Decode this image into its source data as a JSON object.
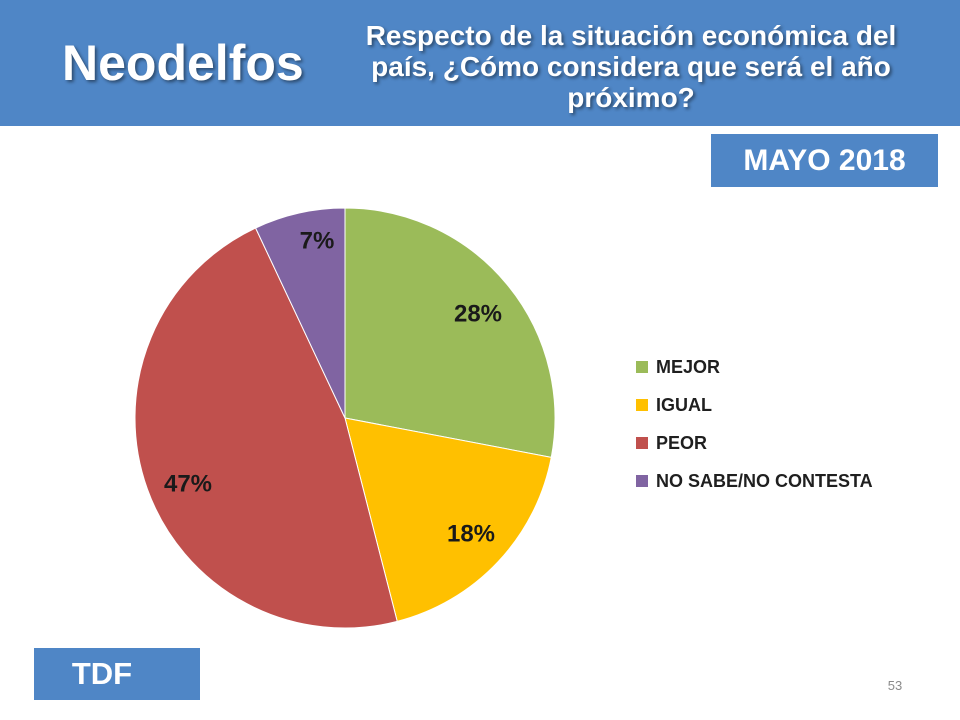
{
  "header": {
    "brand": "Neodelfos",
    "question": "Respecto de la situación económica del país, ¿Cómo considera que será el año próximo?"
  },
  "date_badge": "MAYO 2018",
  "footer": {
    "source_badge": "TDF",
    "slide_number": "53"
  },
  "colors": {
    "header_bg": "#4f86c6"
  },
  "chart_data": {
    "type": "pie",
    "title": "",
    "legend_position": "right",
    "slices": [
      {
        "label": "MEJOR",
        "value": 28,
        "display": "28%",
        "color": "#9bbb59"
      },
      {
        "label": "IGUAL",
        "value": 18,
        "display": "18%",
        "color": "#ffc000"
      },
      {
        "label": "PEOR",
        "value": 47,
        "display": "47%",
        "color": "#c0504d"
      },
      {
        "label": "NO SABE/NO CONTESTA",
        "value": 7,
        "display": "7%",
        "color": "#8064a2"
      }
    ]
  }
}
